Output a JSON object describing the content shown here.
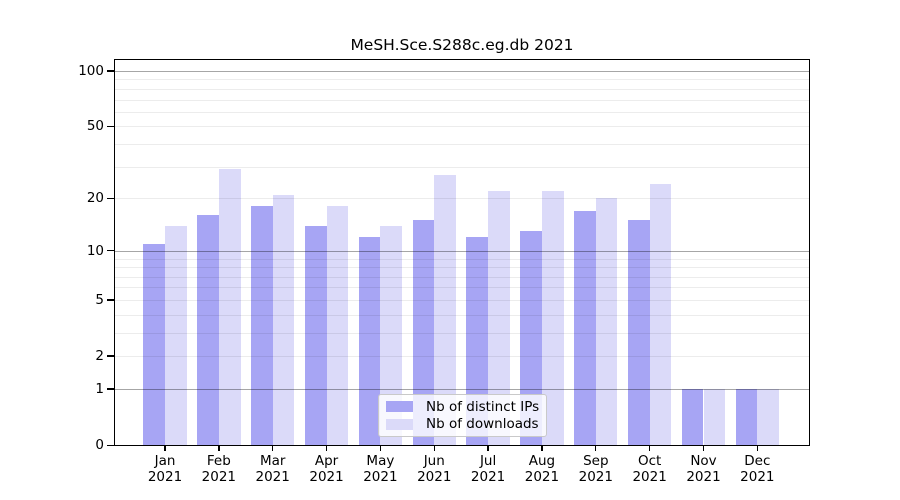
{
  "chart_data": {
    "type": "bar",
    "title": "MeSH.Sce.S288c.eg.db 2021",
    "categories": [
      "Jan 2021",
      "Feb 2021",
      "Mar 2021",
      "Apr 2021",
      "May 2021",
      "Jun 2021",
      "Jul 2021",
      "Aug 2021",
      "Sep 2021",
      "Oct 2021",
      "Nov 2021",
      "Dec 2021"
    ],
    "series": [
      {
        "name": "Nb of distinct IPs",
        "color": "#a7a5f4",
        "values": [
          11,
          16,
          18,
          14,
          12,
          15,
          12,
          13,
          17,
          15,
          1,
          1
        ]
      },
      {
        "name": "Nb of downloads",
        "color": "#dbdaf9",
        "values": [
          14,
          29,
          21,
          18,
          14,
          27,
          22,
          22,
          20,
          24,
          1,
          1
        ]
      }
    ],
    "yscale": "log(1+x)",
    "yticks": [
      0,
      1,
      2,
      5,
      10,
      20,
      50,
      100
    ],
    "minor_gridlines": [
      2,
      3,
      4,
      5,
      6,
      7,
      8,
      9,
      20,
      30,
      40,
      50,
      60,
      70,
      80,
      90
    ],
    "major_gridlines": [
      1,
      10,
      100
    ],
    "ylim": [
      0,
      117
    ],
    "grid": true,
    "legend_position": "inside-bottom-center",
    "axis_color": "#000000",
    "background_color": "#ffffff"
  }
}
